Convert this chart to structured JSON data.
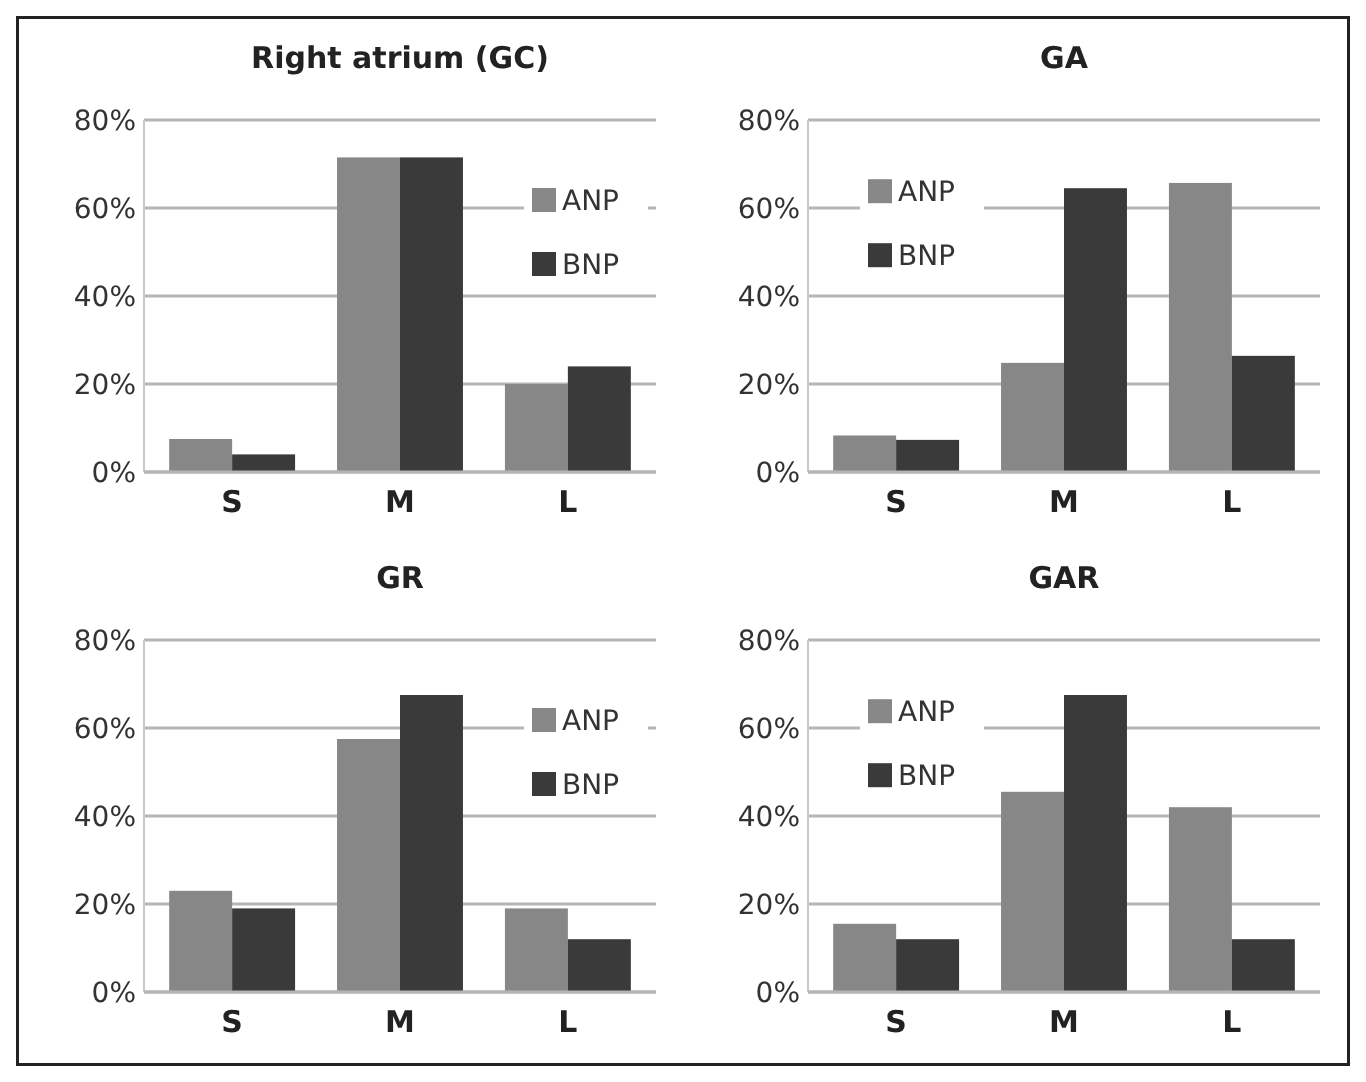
{
  "chart_data": [
    {
      "type": "bar",
      "title": "Right atrium (GC)",
      "categories": [
        "S",
        "M",
        "L"
      ],
      "series": [
        {
          "name": "ANP",
          "color": "#878787",
          "values": [
            7.5,
            71.5,
            20
          ]
        },
        {
          "name": "BNP",
          "color": "#3a3a3a",
          "values": [
            4,
            71.5,
            24
          ]
        }
      ],
      "ylim": [
        0,
        80
      ],
      "yticks": [
        {
          "value": 0,
          "label": "0%"
        },
        {
          "value": 20,
          "label": "20%"
        },
        {
          "value": 40,
          "label": "40%"
        },
        {
          "value": 60,
          "label": "60%"
        },
        {
          "value": 80,
          "label": "80%"
        }
      ],
      "grid": "y",
      "legend": "right"
    },
    {
      "type": "bar",
      "title": "GA",
      "categories": [
        "S",
        "M",
        "L"
      ],
      "series": [
        {
          "name": "ANP",
          "color": "#878787",
          "values": [
            8.3,
            24.8,
            65.7
          ]
        },
        {
          "name": "BNP",
          "color": "#3a3a3a",
          "values": [
            7.3,
            64.5,
            26.4
          ]
        }
      ],
      "ylim": [
        0,
        80
      ],
      "yticks": [
        {
          "value": 0,
          "label": "0%"
        },
        {
          "value": 20,
          "label": "20%"
        },
        {
          "value": 40,
          "label": "40%"
        },
        {
          "value": 60,
          "label": "60%"
        },
        {
          "value": 80,
          "label": "80%"
        }
      ],
      "grid": "y",
      "legend": "top left"
    },
    {
      "type": "bar",
      "title": "GR",
      "categories": [
        "S",
        "M",
        "L"
      ],
      "series": [
        {
          "name": "ANP",
          "color": "#878787",
          "values": [
            23,
            57.5,
            19
          ]
        },
        {
          "name": "BNP",
          "color": "#3a3a3a",
          "values": [
            19,
            67.5,
            12
          ]
        }
      ],
      "ylim": [
        0,
        80
      ],
      "yticks": [
        {
          "value": 0,
          "label": "0%"
        },
        {
          "value": 20,
          "label": "20%"
        },
        {
          "value": 40,
          "label": "40%"
        },
        {
          "value": 60,
          "label": "60%"
        },
        {
          "value": 80,
          "label": "80%"
        }
      ],
      "grid": "y",
      "legend": "right"
    },
    {
      "type": "bar",
      "title": "GAR",
      "categories": [
        "S",
        "M",
        "L"
      ],
      "series": [
        {
          "name": "ANP",
          "color": "#878787",
          "values": [
            15.5,
            45.5,
            42
          ]
        },
        {
          "name": "BNP",
          "color": "#3a3a3a",
          "values": [
            12,
            67.5,
            12
          ]
        }
      ],
      "ylim": [
        0,
        80
      ],
      "yticks": [
        {
          "value": 0,
          "label": "0%"
        },
        {
          "value": 20,
          "label": "20%"
        },
        {
          "value": 40,
          "label": "40%"
        },
        {
          "value": 60,
          "label": "60%"
        },
        {
          "value": 80,
          "label": "80%"
        }
      ],
      "grid": "y",
      "legend": "top left"
    }
  ]
}
